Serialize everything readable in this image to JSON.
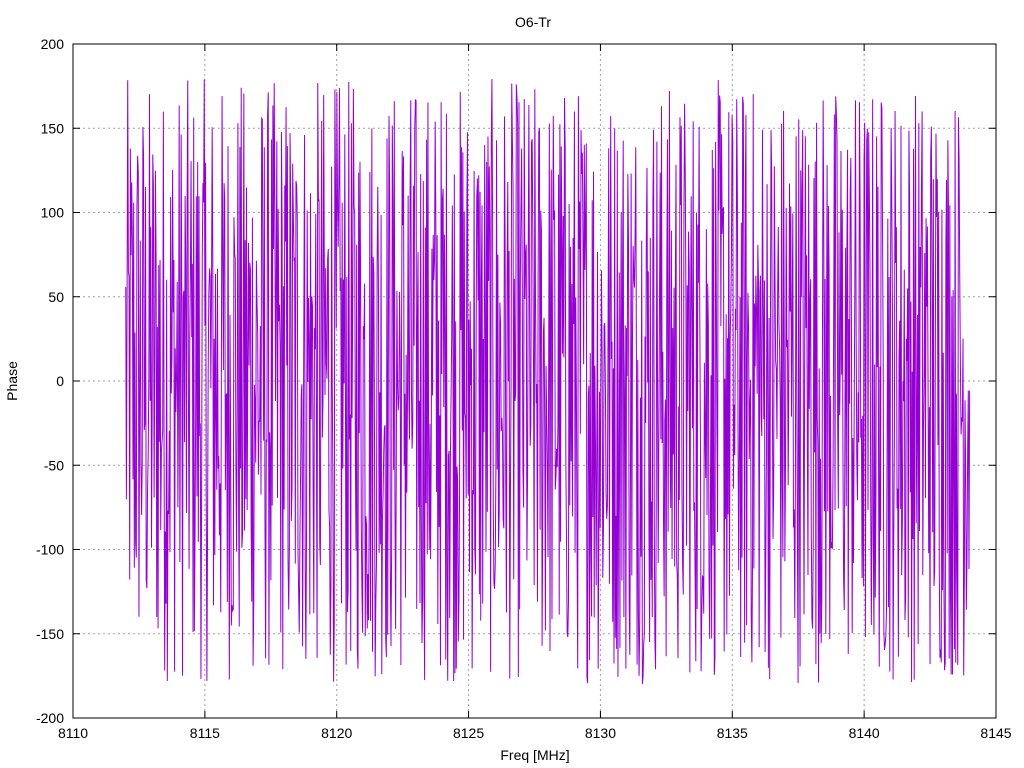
{
  "chart_data": {
    "type": "line",
    "title": "O6-Tr",
    "xlabel": "Freq [MHz]",
    "ylabel": "Phase",
    "xlim": [
      8110,
      8145
    ],
    "ylim": [
      -200,
      200
    ],
    "x_ticks": [
      "8110",
      "8115",
      "8120",
      "8125",
      "8130",
      "8135",
      "8140",
      "8145"
    ],
    "y_ticks": [
      "200",
      "150",
      "100",
      "50",
      "0",
      "-50",
      "-100",
      "-150",
      "-200"
    ],
    "grid": true,
    "legend": "none",
    "series": [
      {
        "color": "#9400d3",
        "x_start": 8112.0,
        "x_end": 8144.0,
        "points_count": 1280,
        "y_range": [
          -180,
          180
        ],
        "description": "dense noisy phase trace wrapping between -180 and 180"
      }
    ]
  }
}
